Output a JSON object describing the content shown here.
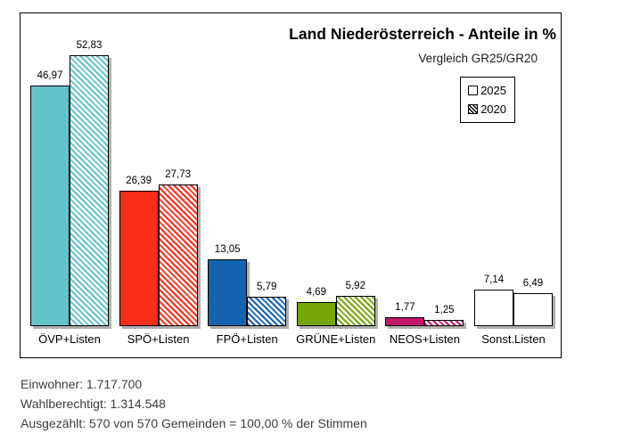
{
  "chart_data": {
    "type": "bar",
    "title": "Land Niederösterreich - Anteile in %",
    "subtitle": "Vergleich GR25/GR20",
    "unit": "%",
    "categories": [
      "ÖVP+Listen",
      "SPÖ+Listen",
      "FPÖ+Listen",
      "GRÜNE+Listen",
      "NEOS+Listen",
      "Sonst.Listen"
    ],
    "series": [
      {
        "name": "2025",
        "style": "solid",
        "values": [
          46.97,
          26.39,
          13.05,
          4.69,
          1.77,
          7.14
        ]
      },
      {
        "name": "2020",
        "style": "hatched",
        "values": [
          52.83,
          27.73,
          5.79,
          5.92,
          1.25,
          6.49
        ]
      }
    ],
    "bar_colors": [
      "#63c3cb",
      "#f92d18",
      "#1563ae",
      "#76a606",
      "#c2176b",
      "#ffffff"
    ],
    "value_label_decimal": "comma",
    "ylim": [
      0,
      55
    ],
    "grid": false,
    "legend_position": "top-right"
  },
  "footer": {
    "lines": [
      "Einwohner: 1.717.700",
      "Wahlberechtigt: 1.314.548",
      "Ausgezählt: 570 von 570 Gemeinden = 100,00 % der Stimmen"
    ]
  }
}
